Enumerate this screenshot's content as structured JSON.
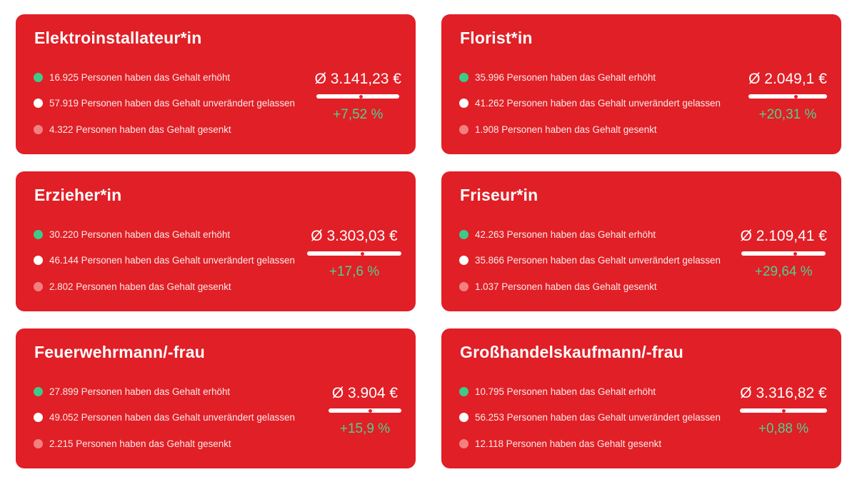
{
  "cards": [
    {
      "title": "Elektroinstallateur*in",
      "rows": [
        {
          "text": "16.925 Personen haben das Gehalt erhöht",
          "dot": "green"
        },
        {
          "text": "57.919 Personen haben das Gehalt unverändert gelassen",
          "dot": "white"
        },
        {
          "text": "4.322 Personen haben das Gehalt gesenkt",
          "dot": "pink"
        }
      ],
      "average": "Ø 3.141,23 €",
      "change": "+7,52 %",
      "marker_position": 0.54
    },
    {
      "title": "Florist*in",
      "rows": [
        {
          "text": "35.996 Personen haben das Gehalt erhöht",
          "dot": "green"
        },
        {
          "text": "41.262 Personen haben das Gehalt unverändert gelassen",
          "dot": "white"
        },
        {
          "text": "1.908 Personen haben das Gehalt gesenkt",
          "dot": "pink"
        }
      ],
      "average": "Ø 2.049,1 €",
      "change": "+20,31 %",
      "marker_position": 0.6
    },
    {
      "title": "Erzieher*in",
      "rows": [
        {
          "text": "30.220 Personen haben das Gehalt erhöht",
          "dot": "green"
        },
        {
          "text": "46.144 Personen haben das Gehalt unverändert gelassen",
          "dot": "white"
        },
        {
          "text": "2.802 Personen haben das Gehalt gesenkt",
          "dot": "pink"
        }
      ],
      "average": "Ø 3.303,03 €",
      "change": "+17,6 %",
      "marker_position": 0.59
    },
    {
      "title": "Friseur*in",
      "rows": [
        {
          "text": "42.263 Personen haben das Gehalt erhöht",
          "dot": "green"
        },
        {
          "text": "35.866 Personen haben das Gehalt unverändert gelassen",
          "dot": "white"
        },
        {
          "text": "1.037 Personen haben das Gehalt gesenkt",
          "dot": "pink"
        }
      ],
      "average": "Ø 2.109,41 €",
      "change": "+29,64 %",
      "marker_position": 0.64
    },
    {
      "title": "Feuerwehrmann/-frau",
      "rows": [
        {
          "text": "27.899 Personen haben das Gehalt erhöht",
          "dot": "green"
        },
        {
          "text": "49.052 Personen haben das Gehalt unverändert gelassen",
          "dot": "white"
        },
        {
          "text": "2.215 Personen haben das Gehalt gesenkt",
          "dot": "pink"
        }
      ],
      "average": "Ø 3.904 €",
      "change": "+15,9 %",
      "marker_position": 0.57
    },
    {
      "title": "Großhandelskaufmann/-frau",
      "rows": [
        {
          "text": "10.795 Personen haben das Gehalt erhöht",
          "dot": "green"
        },
        {
          "text": "56.253 Personen haben das Gehalt unverändert gelassen",
          "dot": "white"
        },
        {
          "text": "12.118 Personen haben das Gehalt gesenkt",
          "dot": "pink"
        }
      ],
      "average": "Ø 3.316,82 €",
      "change": "+0,88 %",
      "marker_position": 0.5
    }
  ],
  "colors": {
    "card_background": "#e11f26",
    "increase": "#3ec98a",
    "unchanged": "#ffffff",
    "decrease": "#f28080",
    "change_text": "#4fd08f"
  }
}
